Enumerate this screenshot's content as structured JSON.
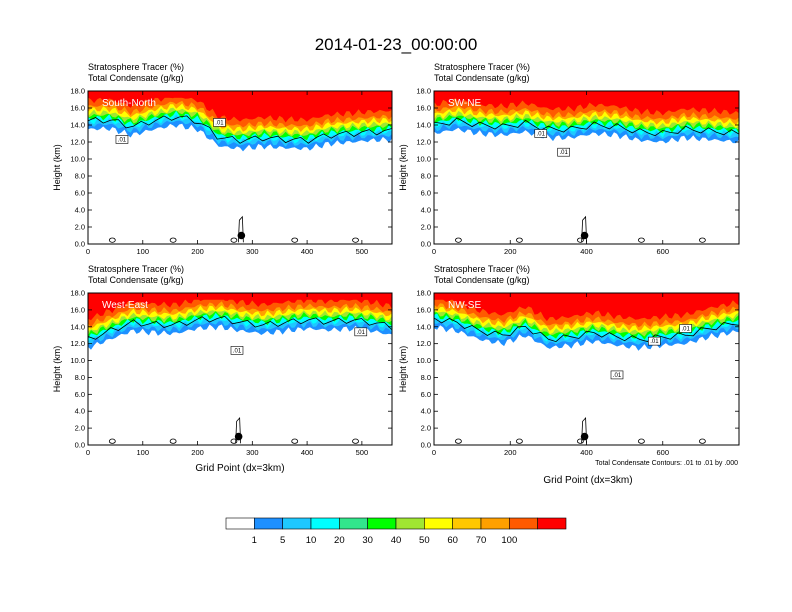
{
  "figure": {
    "title": "2014-01-23_00:00:00",
    "xaxis_label": "Grid Point (dx=3km)",
    "contour_note": "Total Condensate Contours: .01 to .01 by .000"
  },
  "colorbar": {
    "colors": [
      "#ffffff",
      "#1e90ff",
      "#1ec8ff",
      "#00ffff",
      "#32e68c",
      "#00ff00",
      "#a0e632",
      "#ffff00",
      "#ffc800",
      "#ffa000",
      "#ff5a00",
      "#ff0000"
    ],
    "labels": [
      "1",
      "5",
      "10",
      "20",
      "30",
      "40",
      "50",
      "60",
      "70",
      "100"
    ]
  },
  "chart_data": [
    {
      "type": "heatmap",
      "title": "Stratosphere Tracer   (%)",
      "subtitle": "Total Condensate   (g/kg)",
      "region": "South-North",
      "ylabel": "Height (km)",
      "xlim": [
        0,
        555
      ],
      "ylim": [
        0,
        18
      ],
      "xticks": [
        0,
        100,
        200,
        300,
        400,
        500
      ],
      "yticks": [
        "0.0",
        "2.0",
        "4.0",
        "6.0",
        "8.0",
        "10.0",
        "12.0",
        "14.0",
        "16.0",
        "18.0"
      ],
      "tracer_edge_km": {
        "x": [
          0,
          40,
          80,
          120,
          160,
          200,
          240,
          280,
          320,
          360,
          400,
          440,
          480,
          520,
          555
        ],
        "y": [
          13.5,
          13.6,
          12.8,
          13.5,
          14.0,
          13.5,
          11.5,
          11.2,
          11.5,
          11.3,
          11.2,
          11.8,
          12.0,
          12.2,
          12.3
        ]
      },
      "contour_labels": [
        {
          "text": ".01",
          "x": 62,
          "y": 12.3
        },
        {
          "text": ".01",
          "x": 240,
          "y": 14.3
        }
      ],
      "surface_marker": {
        "x": 280,
        "y": 1.0
      }
    },
    {
      "type": "heatmap",
      "title": "Stratosphere Tracer   (%)",
      "subtitle": "Total Condensate   (g/kg)",
      "region": "SW-NE",
      "ylabel": "Height (km)",
      "xlim": [
        0,
        800
      ],
      "ylim": [
        0,
        18
      ],
      "xticks": [
        0,
        200,
        400,
        600
      ],
      "yticks": [
        "0.0",
        "2.0",
        "4.0",
        "6.0",
        "8.0",
        "10.0",
        "12.0",
        "14.0",
        "16.0",
        "18.0"
      ],
      "tracer_edge_km": {
        "x": [
          0,
          60,
          120,
          180,
          240,
          300,
          360,
          420,
          480,
          540,
          600,
          660,
          720,
          800
        ],
        "y": [
          13.0,
          13.5,
          13.0,
          12.8,
          13.2,
          12.5,
          12.5,
          13.0,
          12.8,
          12.2,
          12.0,
          12.5,
          12.3,
          12.0
        ]
      },
      "contour_labels": [
        {
          "text": ".01",
          "x": 280,
          "y": 13.0
        },
        {
          "text": ".01",
          "x": 340,
          "y": 10.8
        }
      ],
      "surface_marker": {
        "x": 395,
        "y": 1.0
      }
    },
    {
      "type": "heatmap",
      "title": "Stratosphere Tracer   (%)",
      "subtitle": "Total Condensate   (g/kg)",
      "region": "West-East",
      "ylabel": "Height (km)",
      "xlim": [
        0,
        555
      ],
      "ylim": [
        0,
        18
      ],
      "xticks": [
        0,
        100,
        200,
        300,
        400,
        500
      ],
      "yticks": [
        "0.0",
        "2.0",
        "4.0",
        "6.0",
        "8.0",
        "10.0",
        "12.0",
        "14.0",
        "16.0",
        "18.0"
      ],
      "tracer_edge_km": {
        "x": [
          0,
          40,
          80,
          120,
          160,
          200,
          240,
          280,
          320,
          360,
          400,
          440,
          480,
          520,
          555
        ],
        "y": [
          11.5,
          12.5,
          13.5,
          13.3,
          13.2,
          13.8,
          14.0,
          13.5,
          13.2,
          13.5,
          13.8,
          13.6,
          13.8,
          13.5,
          13.0
        ]
      },
      "contour_labels": [
        {
          "text": ".01",
          "x": 272,
          "y": 11.2
        },
        {
          "text": ".01",
          "x": 498,
          "y": 13.4
        }
      ],
      "surface_marker": {
        "x": 275,
        "y": 1.0
      }
    },
    {
      "type": "heatmap",
      "title": "Stratosphere Tracer   (%)",
      "subtitle": "Total Condensate   (g/kg)",
      "region": "NW-SE",
      "ylabel": "Height (km)",
      "xlim": [
        0,
        800
      ],
      "ylim": [
        0,
        18
      ],
      "xticks": [
        0,
        200,
        400,
        600
      ],
      "yticks": [
        "0.0",
        "2.0",
        "4.0",
        "6.0",
        "8.0",
        "10.0",
        "12.0",
        "14.0",
        "16.0",
        "18.0"
      ],
      "tracer_edge_km": {
        "x": [
          0,
          60,
          120,
          180,
          240,
          300,
          360,
          420,
          480,
          540,
          600,
          660,
          720,
          800
        ],
        "y": [
          14.0,
          13.5,
          12.5,
          12.0,
          13.0,
          11.5,
          11.8,
          12.3,
          11.8,
          11.5,
          11.8,
          12.0,
          12.8,
          13.5
        ]
      },
      "contour_labels": [
        {
          "text": ".01",
          "x": 480,
          "y": 8.3
        },
        {
          "text": ".01",
          "x": 578,
          "y": 12.3
        },
        {
          "text": ".01",
          "x": 660,
          "y": 13.8
        }
      ],
      "surface_marker": {
        "x": 395,
        "y": 1.0
      }
    }
  ]
}
